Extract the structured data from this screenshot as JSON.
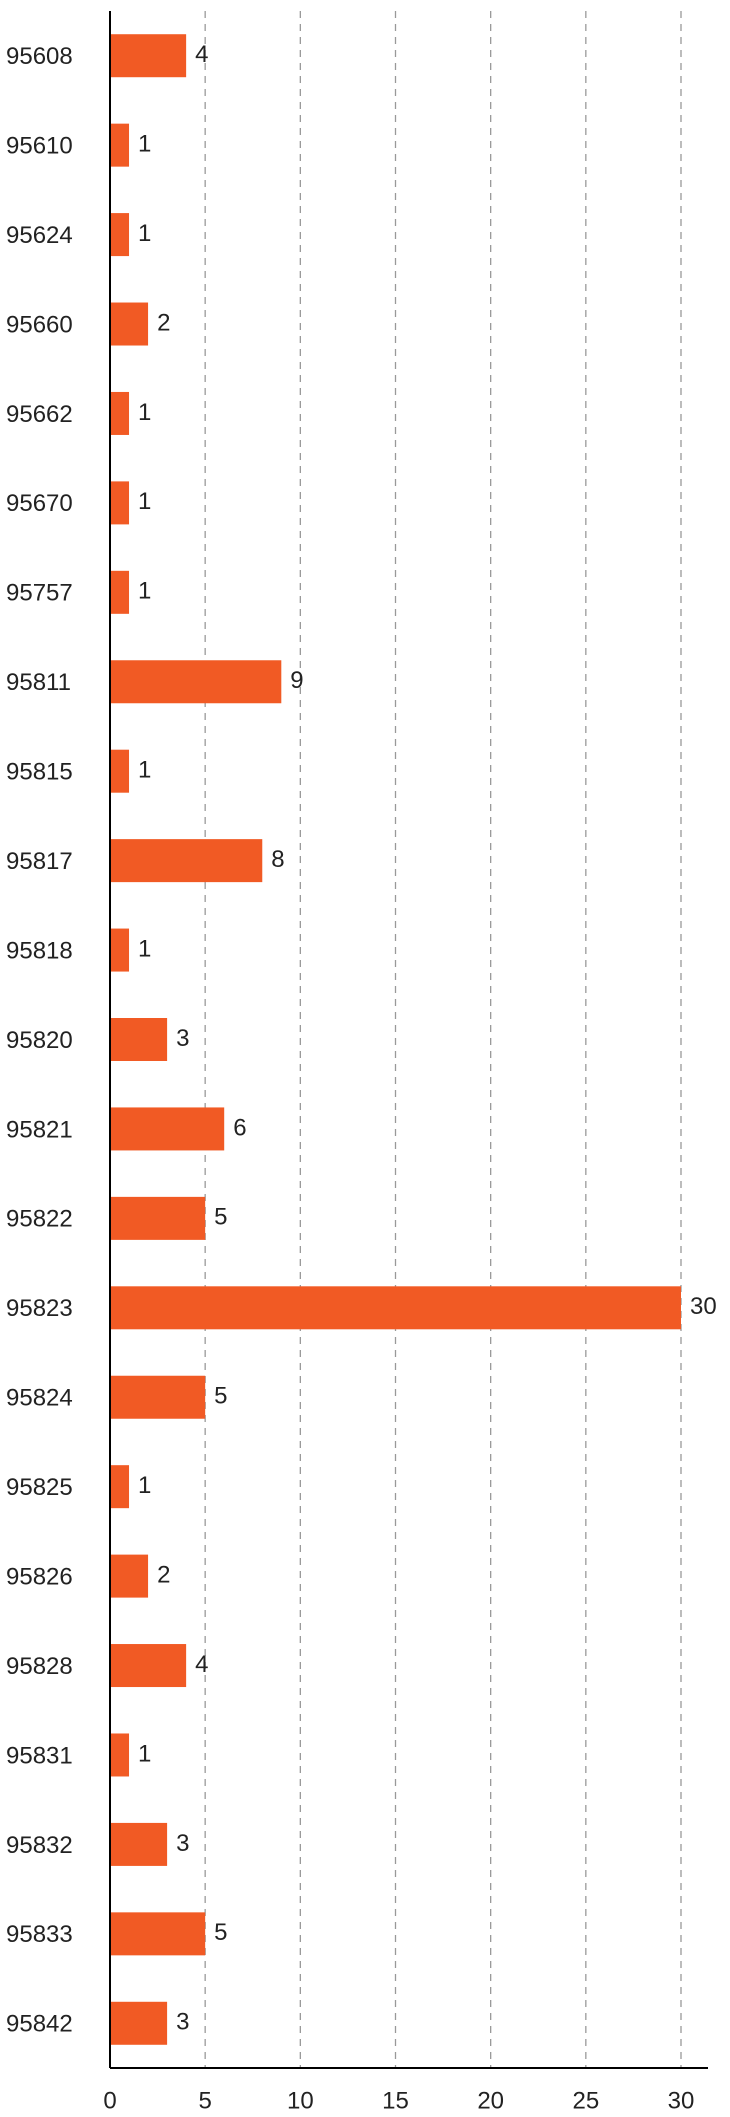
{
  "chart_data": {
    "type": "bar",
    "orientation": "horizontal",
    "categories": [
      "95608",
      "95610",
      "95624",
      "95660",
      "95662",
      "95670",
      "95757",
      "95811",
      "95815",
      "95817",
      "95818",
      "95820",
      "95821",
      "95822",
      "95823",
      "95824",
      "95825",
      "95826",
      "95828",
      "95831",
      "95832",
      "95833",
      "95842"
    ],
    "values": [
      4,
      1,
      1,
      2,
      1,
      1,
      1,
      9,
      1,
      8,
      1,
      3,
      6,
      5,
      30,
      5,
      1,
      2,
      4,
      1,
      3,
      5,
      3
    ],
    "color": "#f15a24",
    "xlim": [
      0,
      30
    ],
    "xticks": [
      0,
      5,
      10,
      15,
      20,
      25,
      30
    ],
    "grid": true
  }
}
